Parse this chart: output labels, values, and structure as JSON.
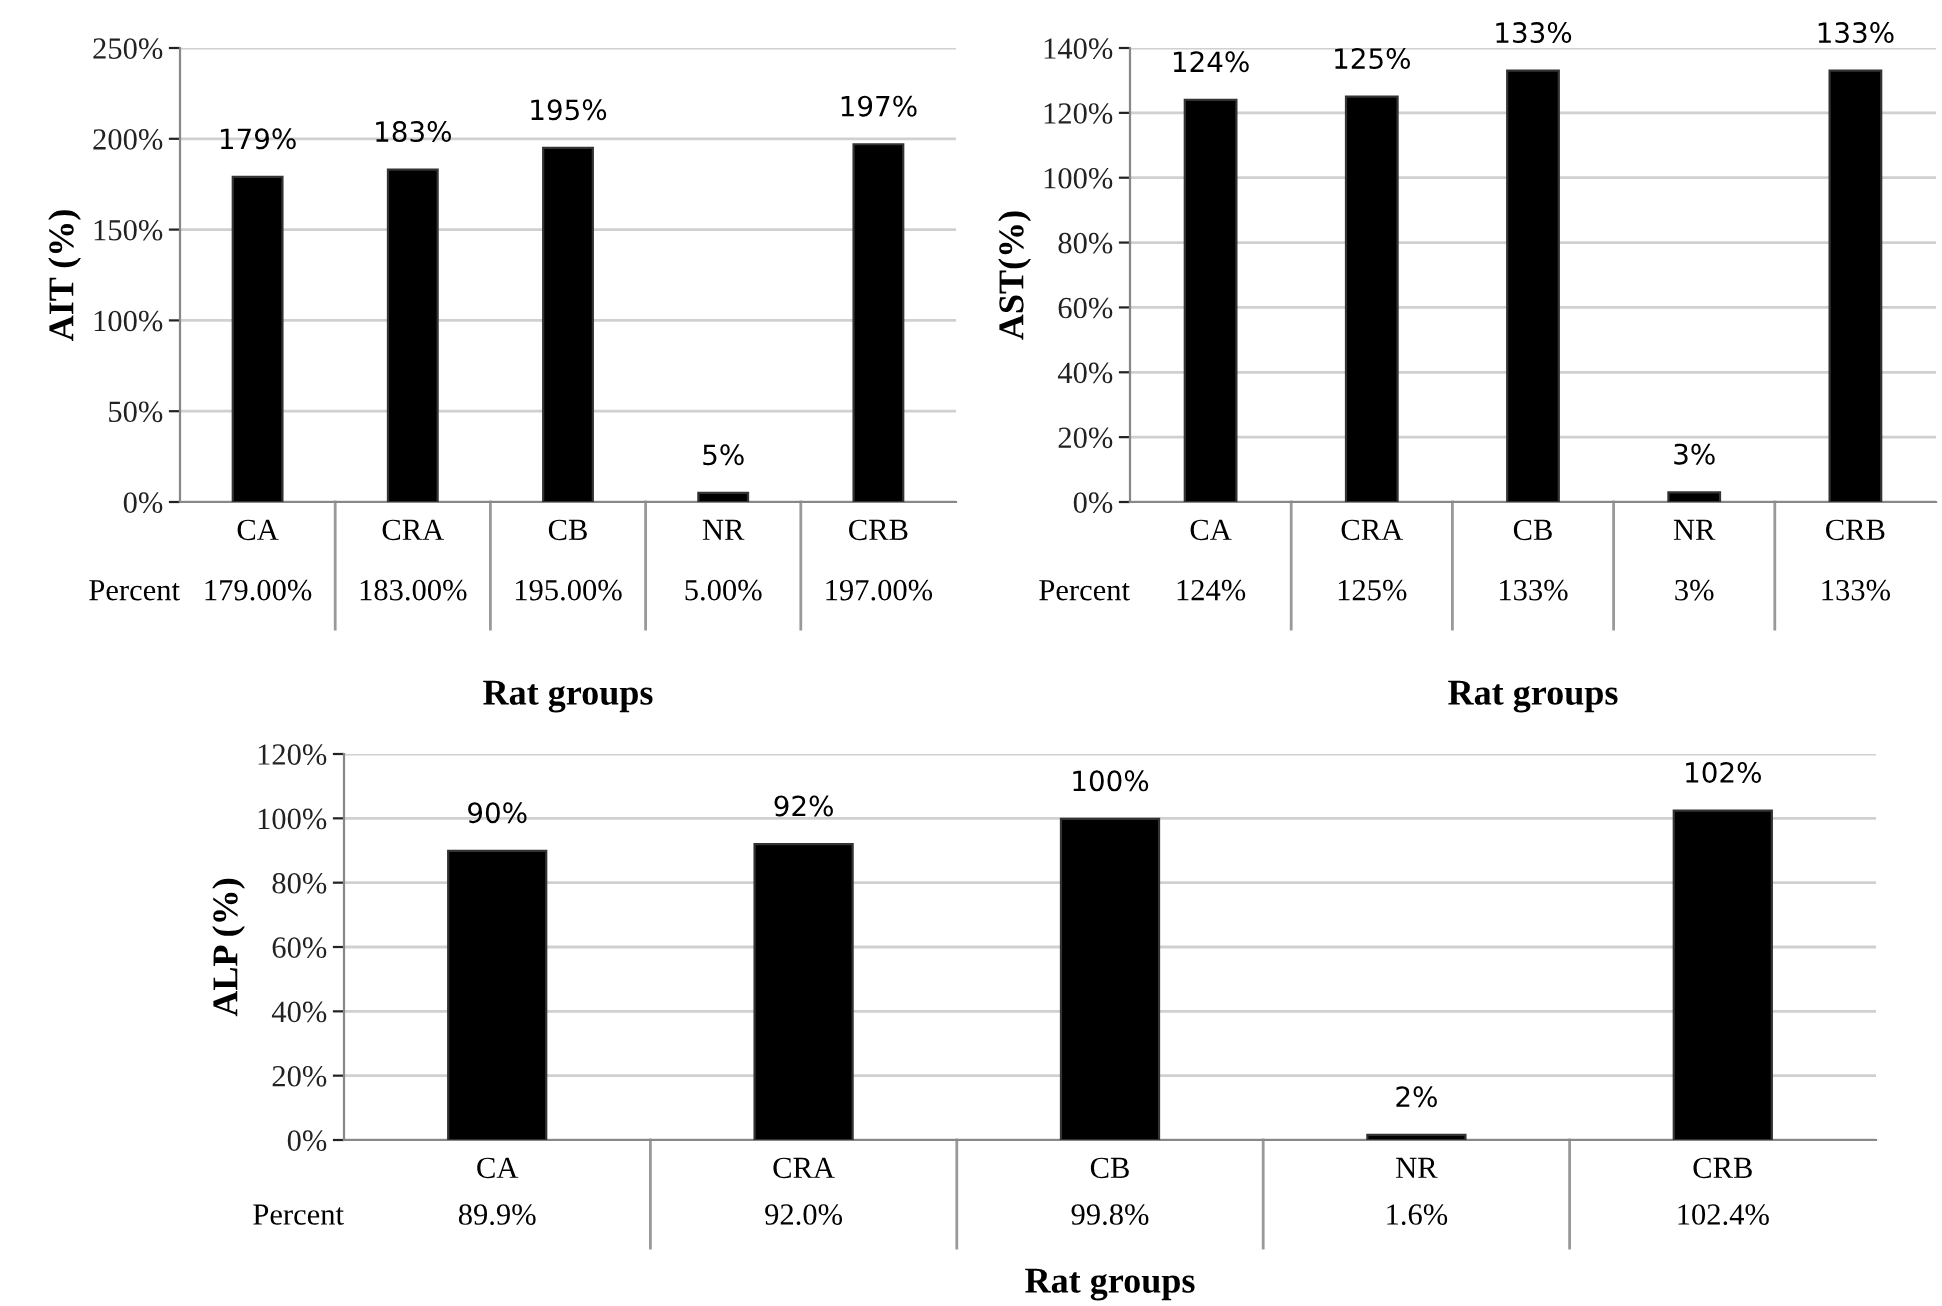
{
  "chart_data": [
    {
      "type": "bar",
      "xlabel": "Rat groups",
      "ylabel": "AIT (%)",
      "categories": [
        "CA",
        "CRA",
        "CB",
        "NR",
        "CRB"
      ],
      "values": [
        179,
        183,
        195,
        5,
        197
      ],
      "color": "#000000",
      "value_labels": [
        "179%",
        "183%",
        "195%",
        "5%",
        "197%"
      ],
      "ylim": [
        0,
        250
      ],
      "yticks": [
        {
          "value": 0,
          "label": "0%"
        },
        {
          "value": 50,
          "label": "50%"
        },
        {
          "value": 100,
          "label": "100%"
        },
        {
          "value": 150,
          "label": "150%"
        },
        {
          "value": 200,
          "label": "200%"
        },
        {
          "value": 250,
          "label": "250%"
        }
      ],
      "grid": "y",
      "legend": false,
      "annotations": [
        "Percent",
        "179.00%",
        "183.00%",
        "195.00%",
        "5.00%",
        "197.00%"
      ]
    },
    {
      "type": "bar",
      "xlabel": "Rat groups",
      "ylabel": "AST(%)",
      "categories": [
        "CA",
        "CRA",
        "CB",
        "NR",
        "CRB"
      ],
      "values": [
        124,
        125,
        133,
        3,
        133
      ],
      "color": "#000000",
      "value_labels": [
        "124%",
        "125%",
        "133%",
        "3%",
        "133%"
      ],
      "ylim": [
        0,
        140
      ],
      "yticks": [
        {
          "value": 0,
          "label": "0%"
        },
        {
          "value": 20,
          "label": "20%"
        },
        {
          "value": 40,
          "label": "40%"
        },
        {
          "value": 60,
          "label": "60%"
        },
        {
          "value": 80,
          "label": "80%"
        },
        {
          "value": 100,
          "label": "100%"
        },
        {
          "value": 120,
          "label": "120%"
        },
        {
          "value": 140,
          "label": "140%"
        }
      ],
      "grid": "y",
      "legend": false,
      "annotations": [
        "Percent",
        "124%",
        "125%",
        "133%",
        "3%",
        "133%"
      ]
    },
    {
      "type": "bar",
      "xlabel": "Rat groups",
      "ylabel": "ALP (%)",
      "categories": [
        "CA",
        "CRA",
        "CB",
        "NR",
        "CRB"
      ],
      "values": [
        89.9,
        92.0,
        99.8,
        1.6,
        102.4
      ],
      "color": "#000000",
      "value_labels": [
        "90%",
        "92%",
        "100%",
        "2%",
        "102%"
      ],
      "ylim": [
        0,
        120
      ],
      "yticks": [
        {
          "value": 0,
          "label": "0%"
        },
        {
          "value": 20,
          "label": "20%"
        },
        {
          "value": 40,
          "label": "40%"
        },
        {
          "value": 60,
          "label": "60%"
        },
        {
          "value": 80,
          "label": "80%"
        },
        {
          "value": 100,
          "label": "100%"
        },
        {
          "value": 120,
          "label": "120%"
        }
      ],
      "grid": "y",
      "legend": false,
      "annotations": [
        "Percent",
        "89.9%",
        "92.0%",
        "99.8%",
        "1.6%",
        "102.4%"
      ]
    }
  ]
}
